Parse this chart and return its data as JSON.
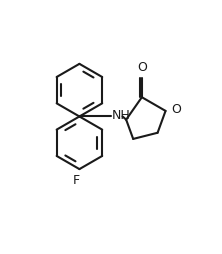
{
  "background_color": "#ffffff",
  "line_color": "#1a1a1a",
  "line_width": 1.5,
  "font_size_label": 9,
  "figsize": [
    2.22,
    2.54
  ],
  "dpi": 100,
  "xlim": [
    -1.0,
    9.0
  ],
  "ylim": [
    -1.5,
    10.5
  ]
}
